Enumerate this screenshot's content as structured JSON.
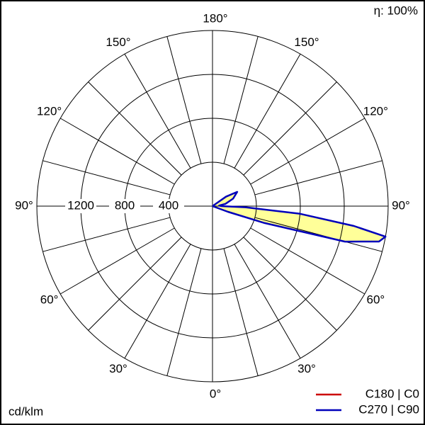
{
  "chart_data": {
    "type": "polar",
    "efficiency_label": "η: 100%",
    "unit_label": "cd/klm",
    "x": [
      0,
      30,
      60,
      65,
      70,
      72,
      75,
      78,
      80,
      82,
      85,
      88,
      90,
      95,
      100,
      110,
      120,
      125,
      130,
      150,
      180
    ],
    "series": [
      {
        "name": "C180 | C0",
        "color": "#cc0000",
        "side": "left",
        "values": [
          0,
          0,
          0,
          0,
          0,
          0,
          0,
          0,
          0,
          0,
          0,
          0,
          0,
          0,
          0,
          0,
          0,
          0,
          0,
          0,
          0
        ]
      },
      {
        "name": "C270 | C90",
        "color": "#0000bb",
        "side": "right",
        "fill": "#ffff99",
        "values": [
          0,
          0,
          0,
          0,
          150,
          500,
          1250,
          1550,
          1600,
          1300,
          800,
          300,
          80,
          60,
          120,
          200,
          260,
          150,
          0,
          0,
          0
        ]
      }
    ],
    "rlim": [
      0,
      1600
    ],
    "rticks": [
      400,
      800,
      1200
    ],
    "thetaticks": [
      {
        "value": 0,
        "label": "0°"
      },
      {
        "value": 30,
        "label": "30°"
      },
      {
        "value": 60,
        "label": "60°"
      },
      {
        "value": 90,
        "label": "90°"
      },
      {
        "value": 120,
        "label": "120°"
      },
      {
        "value": 150,
        "label": "150°"
      },
      {
        "value": 180,
        "label": "180°"
      }
    ]
  }
}
